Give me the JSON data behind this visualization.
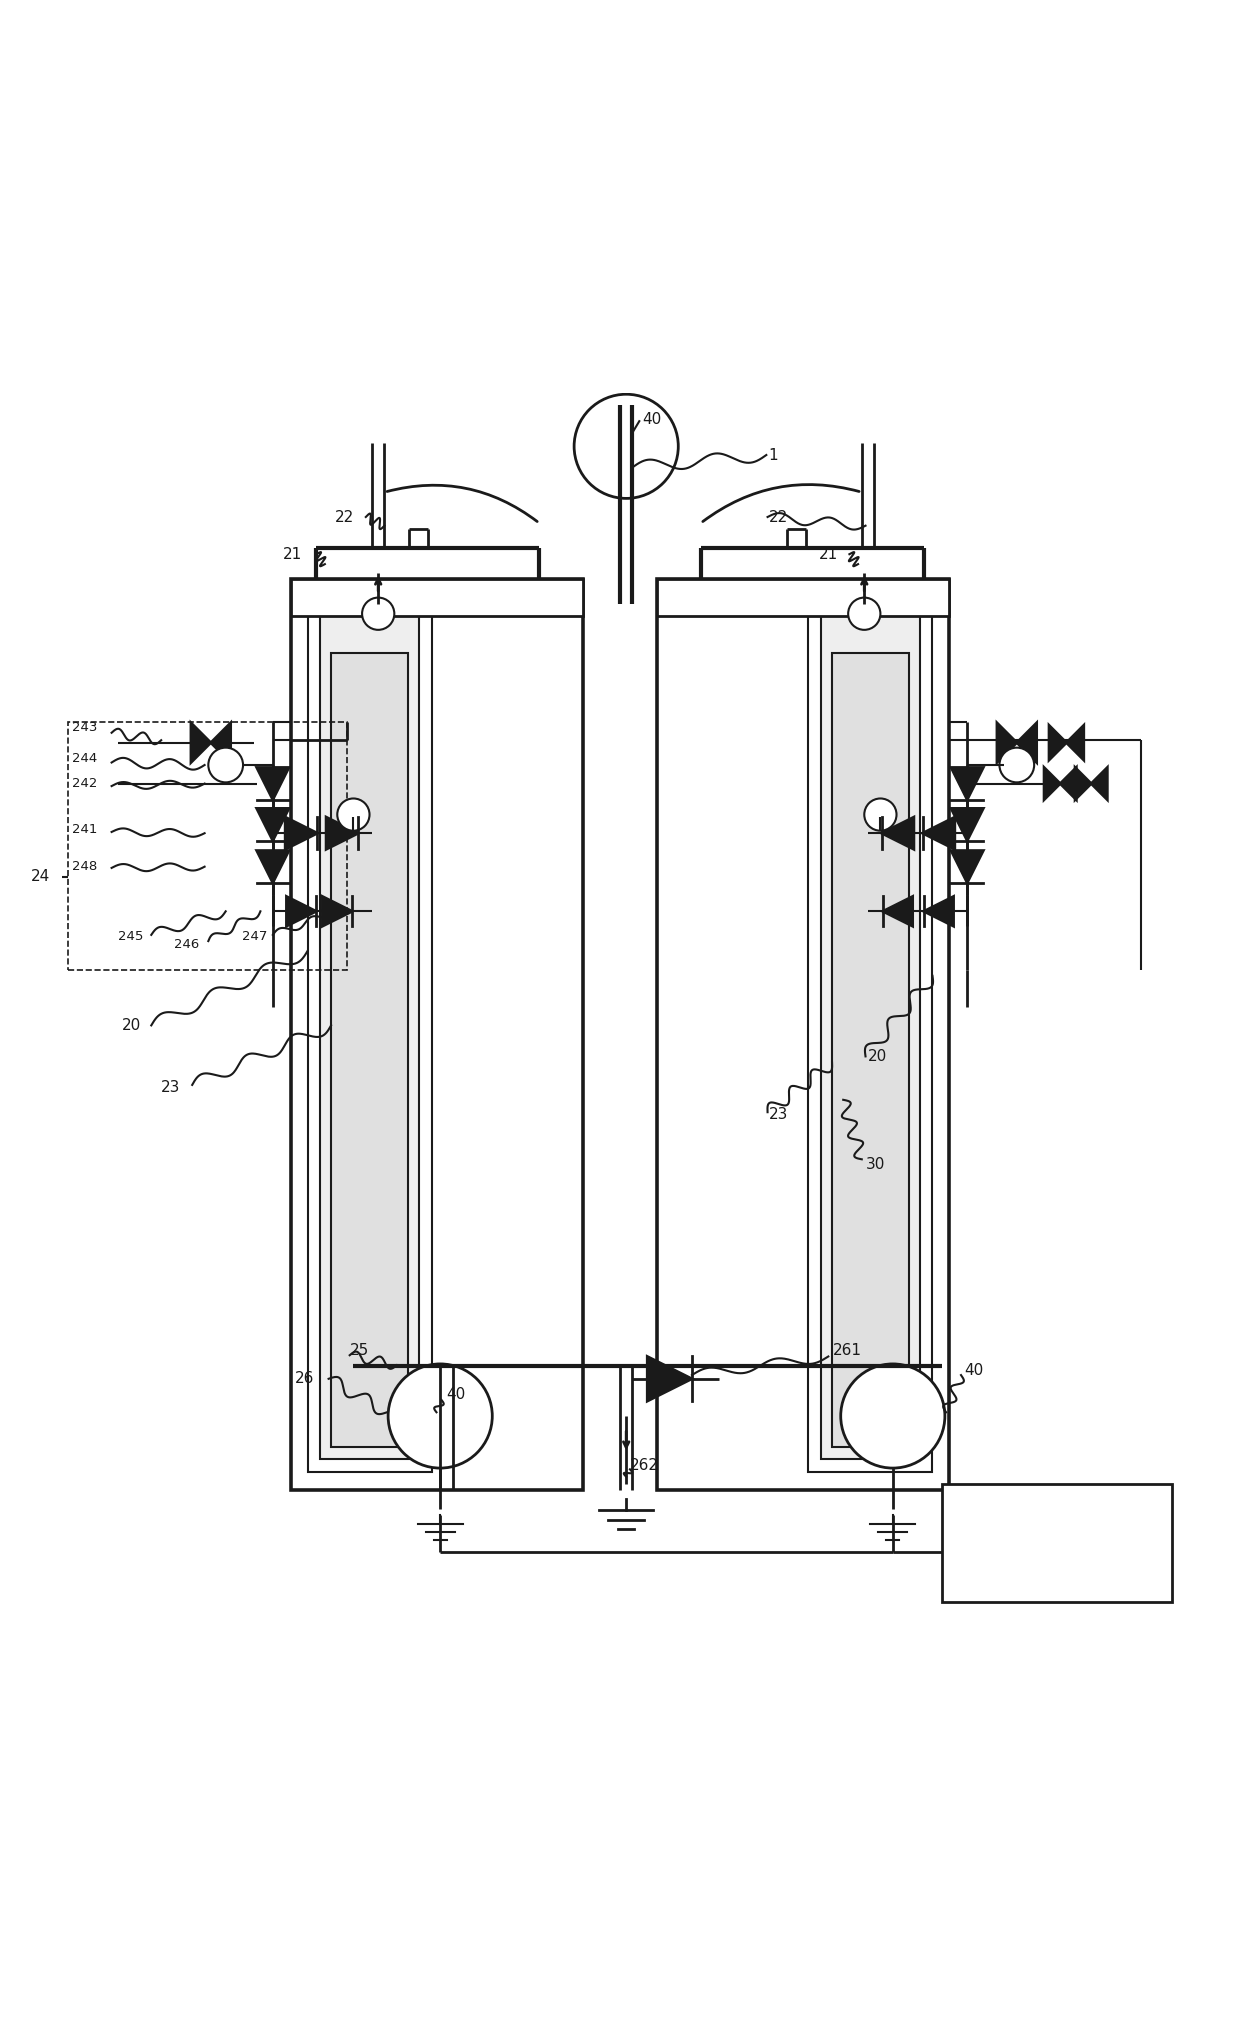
{
  "bg_color": "#ffffff",
  "line_color": "#1a1a1a",
  "line_width": 2.0,
  "thin_lw": 1.5,
  "fig_width": 12.4,
  "fig_height": 20.26
}
